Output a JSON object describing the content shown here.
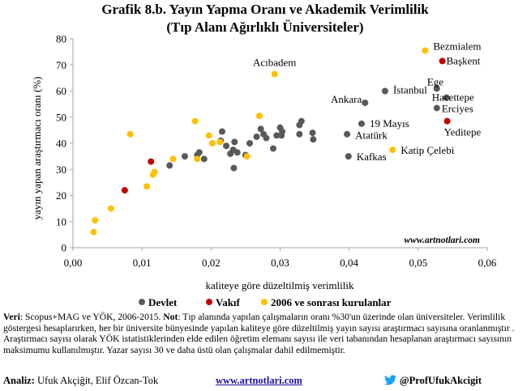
{
  "chart_data": {
    "type": "scatter",
    "title": "Grafik 8.b. Yayın Yapma Oranı ve Akademik Verimlilik",
    "subtitle": "(Tıp Alanı Ağırlıklı Üniversiteler)",
    "xlabel": "kaliteye göre düzeltilmiş verimlilik",
    "ylabel": "yayın yapan araştırmacı oranı (%)",
    "xlim": [
      0,
      0.06
    ],
    "ylim": [
      0,
      80
    ],
    "x_ticks": [
      "0,00",
      "0,01",
      "0,02",
      "0,03",
      "0,04",
      "0,05",
      "0,06"
    ],
    "y_ticks": [
      "0",
      "10",
      "20",
      "30",
      "40",
      "50",
      "60",
      "70",
      "80"
    ],
    "grid": false,
    "legend_position": "bottom",
    "watermark": "www.artnotlari.com",
    "series": [
      {
        "name": "Devlet",
        "color": "#595959",
        "points": [
          {
            "x": 0.014,
            "y": 31.5
          },
          {
            "x": 0.0162,
            "y": 35.0
          },
          {
            "x": 0.018,
            "y": 35.5
          },
          {
            "x": 0.0183,
            "y": 36.5
          },
          {
            "x": 0.019,
            "y": 34.0
          },
          {
            "x": 0.0214,
            "y": 41.0
          },
          {
            "x": 0.0216,
            "y": 44.5
          },
          {
            "x": 0.0222,
            "y": 39.0
          },
          {
            "x": 0.0228,
            "y": 36.0
          },
          {
            "x": 0.0232,
            "y": 37.5
          },
          {
            "x": 0.0234,
            "y": 40.5
          },
          {
            "x": 0.0238,
            "y": 36.5
          },
          {
            "x": 0.0233,
            "y": 30.5
          },
          {
            "x": 0.025,
            "y": 35.5
          },
          {
            "x": 0.0256,
            "y": 40.0
          },
          {
            "x": 0.0266,
            "y": 42.5
          },
          {
            "x": 0.0272,
            "y": 45.5
          },
          {
            "x": 0.0276,
            "y": 43.5
          },
          {
            "x": 0.028,
            "y": 42.0
          },
          {
            "x": 0.029,
            "y": 38.0
          },
          {
            "x": 0.0295,
            "y": 43.0
          },
          {
            "x": 0.03,
            "y": 46.0
          },
          {
            "x": 0.0303,
            "y": 44.5
          },
          {
            "x": 0.0302,
            "y": 43.0
          },
          {
            "x": 0.0328,
            "y": 47.0
          },
          {
            "x": 0.0331,
            "y": 48.5
          },
          {
            "x": 0.0328,
            "y": 43.5
          },
          {
            "x": 0.0347,
            "y": 44.0
          },
          {
            "x": 0.0348,
            "y": 41.5
          },
          {
            "x": 0.0397,
            "y": 43.5
          },
          {
            "x": 0.0399,
            "y": 35.0
          },
          {
            "x": 0.0418,
            "y": 47.5
          },
          {
            "x": 0.0423,
            "y": 55.5
          },
          {
            "x": 0.0452,
            "y": 60.0
          },
          {
            "x": 0.0527,
            "y": 61.0
          },
          {
            "x": 0.0541,
            "y": 57.5
          },
          {
            "x": 0.0527,
            "y": 53.5
          }
        ]
      },
      {
        "name": "Vakıf",
        "color": "#c00000",
        "points": [
          {
            "x": 0.0075,
            "y": 22.0
          },
          {
            "x": 0.0113,
            "y": 33.0
          },
          {
            "x": 0.0535,
            "y": 71.5
          },
          {
            "x": 0.0542,
            "y": 48.5
          }
        ]
      },
      {
        "name": "2006 ve sonrası kurulanlar",
        "color": "#ffc000",
        "points": [
          {
            "x": 0.003,
            "y": 6.0
          },
          {
            "x": 0.0032,
            "y": 10.5
          },
          {
            "x": 0.0055,
            "y": 15.0
          },
          {
            "x": 0.0083,
            "y": 43.5
          },
          {
            "x": 0.0107,
            "y": 23.5
          },
          {
            "x": 0.0116,
            "y": 28.0
          },
          {
            "x": 0.0118,
            "y": 29.0
          },
          {
            "x": 0.0145,
            "y": 34.0
          },
          {
            "x": 0.0177,
            "y": 48.5
          },
          {
            "x": 0.018,
            "y": 34.0
          },
          {
            "x": 0.0197,
            "y": 43.0
          },
          {
            "x": 0.0202,
            "y": 40.0
          },
          {
            "x": 0.0213,
            "y": 40.5
          },
          {
            "x": 0.0252,
            "y": 35.0
          },
          {
            "x": 0.027,
            "y": 50.5
          },
          {
            "x": 0.0292,
            "y": 66.5
          },
          {
            "x": 0.0463,
            "y": 37.5
          },
          {
            "x": 0.051,
            "y": 75.5
          }
        ]
      }
    ],
    "annotations": [
      {
        "text": "Bezmialem",
        "x": 0.051,
        "y": 75.5
      },
      {
        "text": "Başkent",
        "x": 0.0535,
        "y": 71.5
      },
      {
        "text": "Acıbadem",
        "x": 0.0292,
        "y": 66.5
      },
      {
        "text": "Ege",
        "x": 0.0527,
        "y": 61.0
      },
      {
        "text": "İstanbul",
        "x": 0.0452,
        "y": 60.0
      },
      {
        "text": "Hacettepe",
        "x": 0.0541,
        "y": 57.5
      },
      {
        "text": "Ankara",
        "x": 0.0423,
        "y": 55.5
      },
      {
        "text": "Erciyes",
        "x": 0.0527,
        "y": 53.5
      },
      {
        "text": "19 Mayıs",
        "x": 0.0418,
        "y": 47.5
      },
      {
        "text": "Yeditepe",
        "x": 0.0542,
        "y": 48.5
      },
      {
        "text": "Atatürk",
        "x": 0.0397,
        "y": 43.5
      },
      {
        "text": "Katip Çelebi",
        "x": 0.0463,
        "y": 37.5
      },
      {
        "text": "Kafkas",
        "x": 0.0399,
        "y": 35.0
      }
    ]
  },
  "footer": {
    "source_label": "Veri",
    "source_text": ": Scopus+MAG ve YÖK, 2006-2015. ",
    "note_label": "Not",
    "note_text": ": Tıp alanında yapılan çalışmaların oranı %30'un üzerinde olan üniversiteler. Verimlilik göstergesi hesaplarırken, her bir üniversite bünyesinde yapılan kaliteye göre düzeltilmiş yayın sayısı araştırmacı sayısına oranlanmıştır . Araştırmacı sayısı olarak YÖK istatistiklerinden elde edilen öğretim elemanı sayısı ile veri tabanından hesaplanan araştırmacı sayısının maksimumu kullanılmıştır. Yazar sayısı 30 ve daha üstü olan çalışmalar dahil edilmemiştir.",
    "analysis_label": "Analiz:",
    "analysis_text": " Ufuk Akçiğit, Elif Özcan-Tok",
    "website": "www.artnotlari.com",
    "twitter": "@ProfUfukAkcigit",
    "twitter_icon": "twitter-bird-icon",
    "link_color": "#1a0dab",
    "twitter_color": "#1da1f2"
  }
}
